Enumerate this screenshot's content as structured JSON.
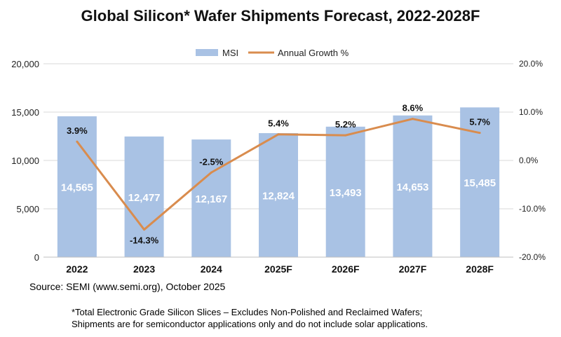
{
  "title": "Global Silicon* Wafer Shipments Forecast, 2022-2028F",
  "source": "Source: SEMI (www.semi.org), October 2025",
  "footnote": {
    "line1": "*Total Electronic Grade Silicon Slices – Excludes Non-Polished and Reclaimed Wafers;",
    "line2": "Shipments are for semiconductor applications only and do not include solar applications."
  },
  "colors": {
    "bar": "#a9c2e4",
    "line": "#d98c4e",
    "grid": "#d9d9d9"
  },
  "chart_data": {
    "type": "bar",
    "categories": [
      "2022",
      "2023",
      "2024",
      "2025F",
      "2026F",
      "2027F",
      "2028F"
    ],
    "series": [
      {
        "name": "MSI",
        "type": "bar",
        "axis": "left",
        "values": [
          14565,
          12477,
          12167,
          12824,
          13493,
          14653,
          15485
        ],
        "labels": [
          "14,565",
          "12,477",
          "12,167",
          "12,824",
          "13,493",
          "14,653",
          "15,485"
        ]
      },
      {
        "name": "Annual Growth %",
        "type": "line",
        "axis": "right",
        "values": [
          3.9,
          -14.3,
          -2.5,
          5.4,
          5.2,
          8.6,
          5.7
        ],
        "labels": [
          "3.9%",
          "-14.3%",
          "-2.5%",
          "5.4%",
          "5.2%",
          "8.6%",
          "5.7%"
        ]
      }
    ],
    "y_left": {
      "min": 0,
      "max": 20000,
      "ticks": [
        0,
        5000,
        10000,
        15000,
        20000
      ],
      "tick_labels": [
        "0",
        "5,000",
        "10,000",
        "15,000",
        "20,000"
      ]
    },
    "y_right": {
      "min": -20,
      "max": 20,
      "ticks": [
        -20,
        -10,
        0,
        10,
        20
      ],
      "tick_labels": [
        "-20.0%",
        "-10.0%",
        "0.0%",
        "10.0%",
        "20.0%"
      ]
    },
    "grid": true,
    "legend": "top-center"
  }
}
